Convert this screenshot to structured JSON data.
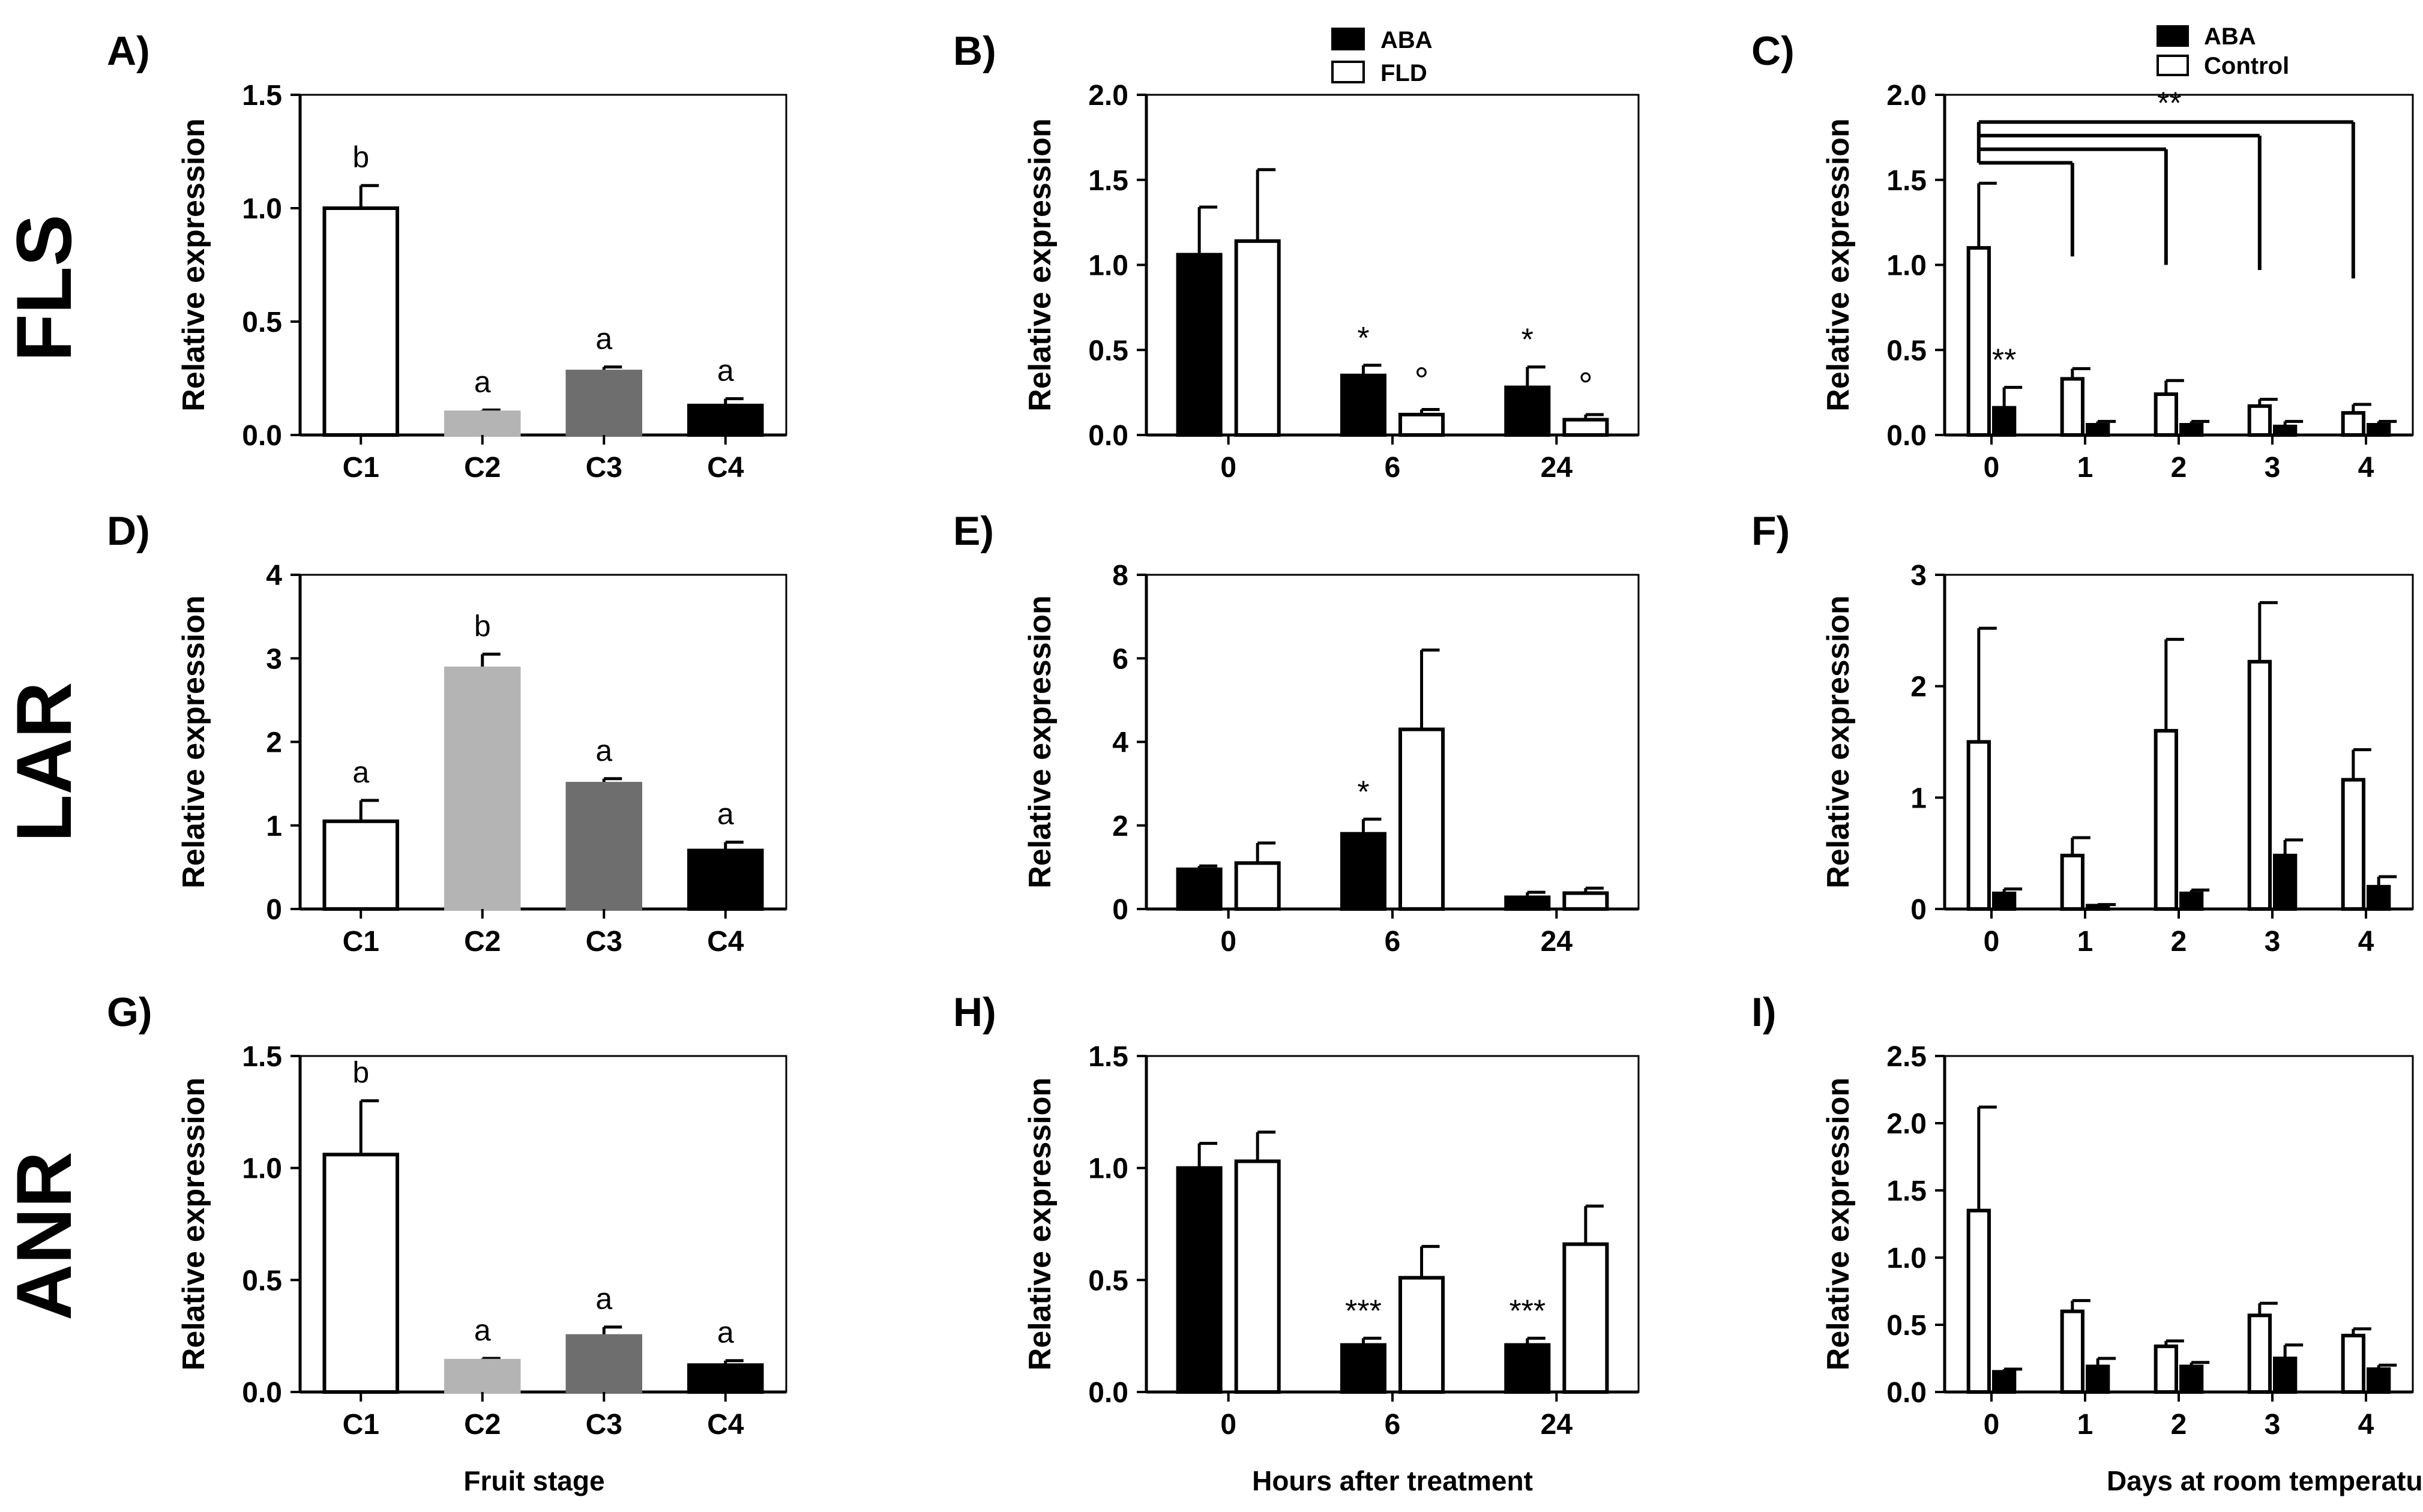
{
  "rows": [
    "FLS",
    "LAR",
    "ANR"
  ],
  "xlabels": {
    "col1": "Fruit stage",
    "col2": "Hours after treatment",
    "col3": "Days at room temperature"
  },
  "legends": {
    "col2": [
      "ABA",
      "FLD"
    ],
    "col3": [
      "ABA",
      "Control"
    ]
  },
  "colors": {
    "C1": "#ffffff",
    "C2": "#b4b4b4",
    "C3": "#6e6e6e",
    "C4": "#000000",
    "ABA": "#000000",
    "open": "#ffffff",
    "stroke": "#000000"
  },
  "chart_data": [
    {
      "id": "A",
      "label": "A)",
      "type": "bar",
      "row": 0,
      "col": 0,
      "categories": [
        "C1",
        "C2",
        "C3",
        "C4"
      ],
      "values": [
        1.0,
        0.1,
        0.28,
        0.13
      ],
      "errors": [
        0.1,
        0.01,
        0.02,
        0.03
      ],
      "letters": [
        "b",
        "a",
        "a",
        "a"
      ],
      "ylabel": "Relative expression",
      "ylim": [
        0,
        1.5
      ],
      "yticks": [
        "0.0",
        "0.5",
        "1.0",
        "1.5"
      ]
    },
    {
      "id": "B",
      "label": "B)",
      "type": "bar",
      "row": 0,
      "col": 1,
      "categories": [
        "0",
        "6",
        "24"
      ],
      "series": [
        {
          "name": "ABA",
          "values": [
            1.06,
            0.35,
            0.28
          ],
          "errors": [
            0.28,
            0.06,
            0.12
          ]
        },
        {
          "name": "FLD",
          "values": [
            1.14,
            0.12,
            0.09
          ],
          "errors": [
            0.42,
            0.03,
            0.03
          ]
        }
      ],
      "annotations": [
        {
          "cat": 1,
          "series": 0,
          "text": "*"
        },
        {
          "cat": 1,
          "series": 1,
          "text": "°"
        },
        {
          "cat": 2,
          "series": 0,
          "text": "*"
        },
        {
          "cat": 2,
          "series": 1,
          "text": "°"
        }
      ],
      "ylabel": "Relative expression",
      "ylim": [
        0,
        2
      ],
      "yticks": [
        "0.0",
        "0.5",
        "1.0",
        "1.5",
        "2.0"
      ]
    },
    {
      "id": "C",
      "label": "C)",
      "type": "bar",
      "row": 0,
      "col": 2,
      "categories": [
        "0",
        "1",
        "2",
        "3",
        "4"
      ],
      "series": [
        {
          "name": "Control",
          "values": [
            1.1,
            0.33,
            0.24,
            0.17,
            0.13
          ],
          "errors": [
            0.38,
            0.06,
            0.08,
            0.04,
            0.05
          ]
        },
        {
          "name": "ABA",
          "values": [
            0.16,
            0.06,
            0.06,
            0.05,
            0.06
          ],
          "errors": [
            0.12,
            0.02,
            0.02,
            0.03,
            0.02
          ]
        }
      ],
      "annotations": [
        {
          "cat": 0,
          "series": 1,
          "text": "**"
        }
      ],
      "significance": {
        "text": "**",
        "from": 0,
        "to": [
          1,
          2,
          3,
          4
        ]
      },
      "ylabel": "Relative expression",
      "ylim": [
        0,
        2
      ],
      "yticks": [
        "0.0",
        "0.5",
        "1.0",
        "1.5",
        "2.0"
      ]
    },
    {
      "id": "D",
      "label": "D)",
      "type": "bar",
      "row": 1,
      "col": 0,
      "categories": [
        "C1",
        "C2",
        "C3",
        "C4"
      ],
      "values": [
        1.05,
        2.88,
        1.5,
        0.7
      ],
      "errors": [
        0.25,
        0.17,
        0.06,
        0.1
      ],
      "letters": [
        "a",
        "b",
        "a",
        "a"
      ],
      "ylabel": "Relative expression",
      "ylim": [
        0,
        4
      ],
      "yticks": [
        "0",
        "1",
        "2",
        "3",
        "4"
      ]
    },
    {
      "id": "E",
      "label": "E)",
      "type": "bar",
      "row": 1,
      "col": 1,
      "categories": [
        "0",
        "6",
        "24"
      ],
      "series": [
        {
          "name": "ABA",
          "values": [
            0.95,
            1.8,
            0.28
          ],
          "errors": [
            0.08,
            0.35,
            0.12
          ]
        },
        {
          "name": "FLD",
          "values": [
            1.1,
            4.3,
            0.38
          ],
          "errors": [
            0.48,
            1.9,
            0.12
          ]
        }
      ],
      "annotations": [
        {
          "cat": 1,
          "series": 0,
          "text": "*"
        }
      ],
      "ylabel": "Relative expression",
      "ylim": [
        0,
        8
      ],
      "yticks": [
        "0",
        "2",
        "4",
        "6",
        "8"
      ]
    },
    {
      "id": "F",
      "label": "F)",
      "type": "bar",
      "row": 1,
      "col": 2,
      "categories": [
        "0",
        "1",
        "2",
        "3",
        "4"
      ],
      "series": [
        {
          "name": "Control",
          "values": [
            1.5,
            0.48,
            1.6,
            2.22,
            1.16
          ],
          "errors": [
            1.02,
            0.16,
            0.82,
            0.53,
            0.27
          ]
        },
        {
          "name": "ABA",
          "values": [
            0.14,
            0.03,
            0.14,
            0.48,
            0.2
          ],
          "errors": [
            0.04,
            0.01,
            0.03,
            0.14,
            0.09
          ]
        }
      ],
      "ylabel": "Relative expression",
      "ylim": [
        0,
        3
      ],
      "yticks": [
        "0",
        "1",
        "2",
        "3"
      ]
    },
    {
      "id": "G",
      "label": "G)",
      "type": "bar",
      "row": 2,
      "col": 0,
      "categories": [
        "C1",
        "C2",
        "C3",
        "C4"
      ],
      "values": [
        1.06,
        0.14,
        0.25,
        0.12
      ],
      "errors": [
        0.24,
        0.01,
        0.04,
        0.02
      ],
      "letters": [
        "b",
        "a",
        "a",
        "a"
      ],
      "ylabel": "Relative expression",
      "ylim": [
        0,
        1.5
      ],
      "yticks": [
        "0.0",
        "0.5",
        "1.0",
        "1.5"
      ]
    },
    {
      "id": "H",
      "label": "H)",
      "type": "bar",
      "row": 2,
      "col": 1,
      "categories": [
        "0",
        "6",
        "24"
      ],
      "series": [
        {
          "name": "ABA",
          "values": [
            1.0,
            0.21,
            0.21
          ],
          "errors": [
            0.11,
            0.03,
            0.03
          ]
        },
        {
          "name": "FLD",
          "values": [
            1.03,
            0.51,
            0.66
          ],
          "errors": [
            0.13,
            0.14,
            0.17
          ]
        }
      ],
      "annotations": [
        {
          "cat": 1,
          "series": 0,
          "text": "***"
        },
        {
          "cat": 2,
          "series": 0,
          "text": "***"
        }
      ],
      "ylabel": "Relative expression",
      "ylim": [
        0,
        1.5
      ],
      "yticks": [
        "0.0",
        "0.5",
        "1.0",
        "1.5"
      ]
    },
    {
      "id": "I",
      "label": "I)",
      "type": "bar",
      "row": 2,
      "col": 2,
      "categories": [
        "0",
        "1",
        "2",
        "3",
        "4"
      ],
      "series": [
        {
          "name": "Control",
          "values": [
            1.35,
            0.6,
            0.34,
            0.57,
            0.42
          ],
          "errors": [
            0.77,
            0.08,
            0.04,
            0.09,
            0.05
          ]
        },
        {
          "name": "ABA",
          "values": [
            0.15,
            0.19,
            0.19,
            0.25,
            0.17
          ],
          "errors": [
            0.02,
            0.06,
            0.03,
            0.1,
            0.03
          ]
        }
      ],
      "ylabel": "Relative expression",
      "ylim": [
        0,
        2.5
      ],
      "yticks": [
        "0.0",
        "0.5",
        "1.0",
        "1.5",
        "2.0",
        "2.5"
      ]
    }
  ]
}
